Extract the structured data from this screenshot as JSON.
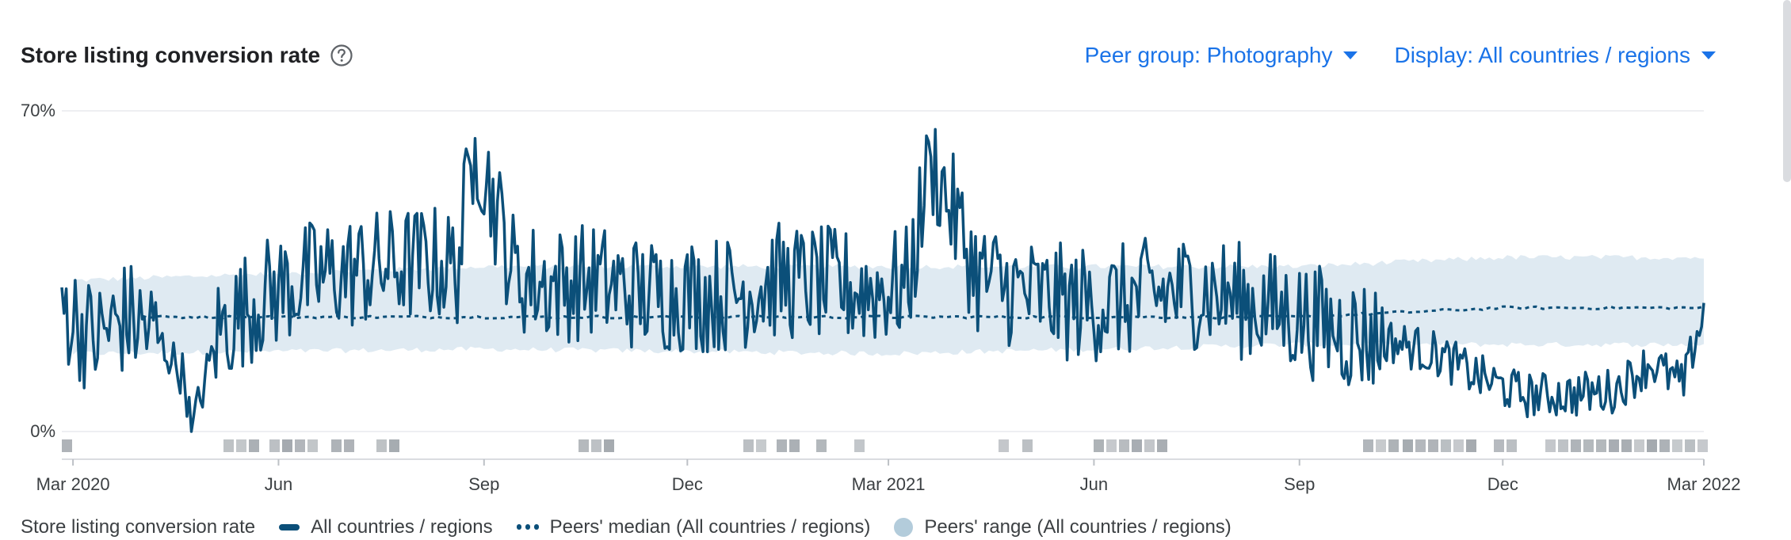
{
  "header": {
    "title": "Store listing conversion rate",
    "help_icon": "help-circle-icon"
  },
  "controls": {
    "peer_group_label": "Peer group: Photography",
    "display_label": "Display: All countries / regions",
    "caret_icon": "caret-down-icon"
  },
  "legend": {
    "prefix": "Store listing conversion rate",
    "series": "All countries / regions",
    "median": "Peers' median (All countries / regions)",
    "range": "Peers' range (All countries / regions)"
  },
  "colors": {
    "series": "#0b4f79",
    "range": "#dce8f1",
    "accent": "#1a73e8",
    "marker": "#9aa0a6"
  },
  "chart_data": {
    "type": "line",
    "x_range": [
      "2020-02-25",
      "2022-03-01"
    ],
    "ylim": [
      0,
      70
    ],
    "y_ticks": [
      "70%",
      "0%"
    ],
    "x_ticks": [
      {
        "label": "Mar 2020",
        "date": "2020-03-01"
      },
      {
        "label": "Jun",
        "date": "2020-06-01"
      },
      {
        "label": "Sep",
        "date": "2020-09-01"
      },
      {
        "label": "Dec",
        "date": "2020-12-01"
      },
      {
        "label": "Mar 2021",
        "date": "2021-03-01"
      },
      {
        "label": "Jun",
        "date": "2021-06-01"
      },
      {
        "label": "Sep",
        "date": "2021-09-01"
      },
      {
        "label": "Dec",
        "date": "2021-12-01"
      },
      {
        "label": "Mar 2022",
        "date": "2022-03-01"
      }
    ],
    "legend_position": "bottom",
    "series": [
      {
        "name": "All countries / regions",
        "style": "solid",
        "points": [
          [
            "2020-02-25",
            28
          ],
          [
            "2020-03-10",
            20
          ],
          [
            "2020-03-25",
            25
          ],
          [
            "2020-04-05",
            22
          ],
          [
            "2020-04-20",
            12
          ],
          [
            "2020-04-23",
            0
          ],
          [
            "2020-05-05",
            22
          ],
          [
            "2020-05-20",
            28
          ],
          [
            "2020-06-05",
            32
          ],
          [
            "2020-06-20",
            34
          ],
          [
            "2020-07-05",
            35
          ],
          [
            "2020-07-20",
            36
          ],
          [
            "2020-08-05",
            37
          ],
          [
            "2020-08-20",
            36
          ],
          [
            "2020-08-28",
            64
          ],
          [
            "2020-09-15",
            34
          ],
          [
            "2020-10-01",
            32
          ],
          [
            "2020-10-20",
            33
          ],
          [
            "2020-11-10",
            30
          ],
          [
            "2020-12-01",
            30
          ],
          [
            "2020-12-20",
            30
          ],
          [
            "2021-01-10",
            33
          ],
          [
            "2021-02-01",
            32
          ],
          [
            "2021-02-20",
            31
          ],
          [
            "2021-03-10",
            32
          ],
          [
            "2021-03-20",
            60
          ],
          [
            "2021-04-10",
            34
          ],
          [
            "2021-05-01",
            30
          ],
          [
            "2021-05-20",
            28
          ],
          [
            "2021-06-10",
            28
          ],
          [
            "2021-07-01",
            30
          ],
          [
            "2021-07-20",
            31
          ],
          [
            "2021-08-10",
            28
          ],
          [
            "2021-09-01",
            25
          ],
          [
            "2021-09-20",
            22
          ],
          [
            "2021-10-10",
            20
          ],
          [
            "2021-11-01",
            17
          ],
          [
            "2021-11-20",
            12
          ],
          [
            "2021-12-10",
            8
          ],
          [
            "2022-01-01",
            8
          ],
          [
            "2022-01-20",
            9
          ],
          [
            "2022-02-05",
            15
          ],
          [
            "2022-02-20",
            10
          ],
          [
            "2022-03-01",
            28
          ]
        ]
      },
      {
        "name": "Peers' median (All countries / regions)",
        "style": "dotted",
        "points": [
          [
            "2020-04-01",
            25
          ],
          [
            "2020-09-01",
            25
          ],
          [
            "2021-03-01",
            25
          ],
          [
            "2021-09-01",
            25
          ],
          [
            "2021-12-01",
            27
          ],
          [
            "2022-03-01",
            27
          ]
        ]
      },
      {
        "name": "Peers' range (All countries / regions)",
        "style": "band",
        "points": [
          [
            "2020-03-01",
            17,
            33
          ],
          [
            "2020-09-01",
            18,
            36
          ],
          [
            "2021-03-01",
            17,
            36
          ],
          [
            "2021-09-01",
            19,
            36
          ],
          [
            "2021-12-01",
            19,
            38
          ],
          [
            "2022-03-01",
            19,
            38
          ]
        ]
      }
    ]
  }
}
